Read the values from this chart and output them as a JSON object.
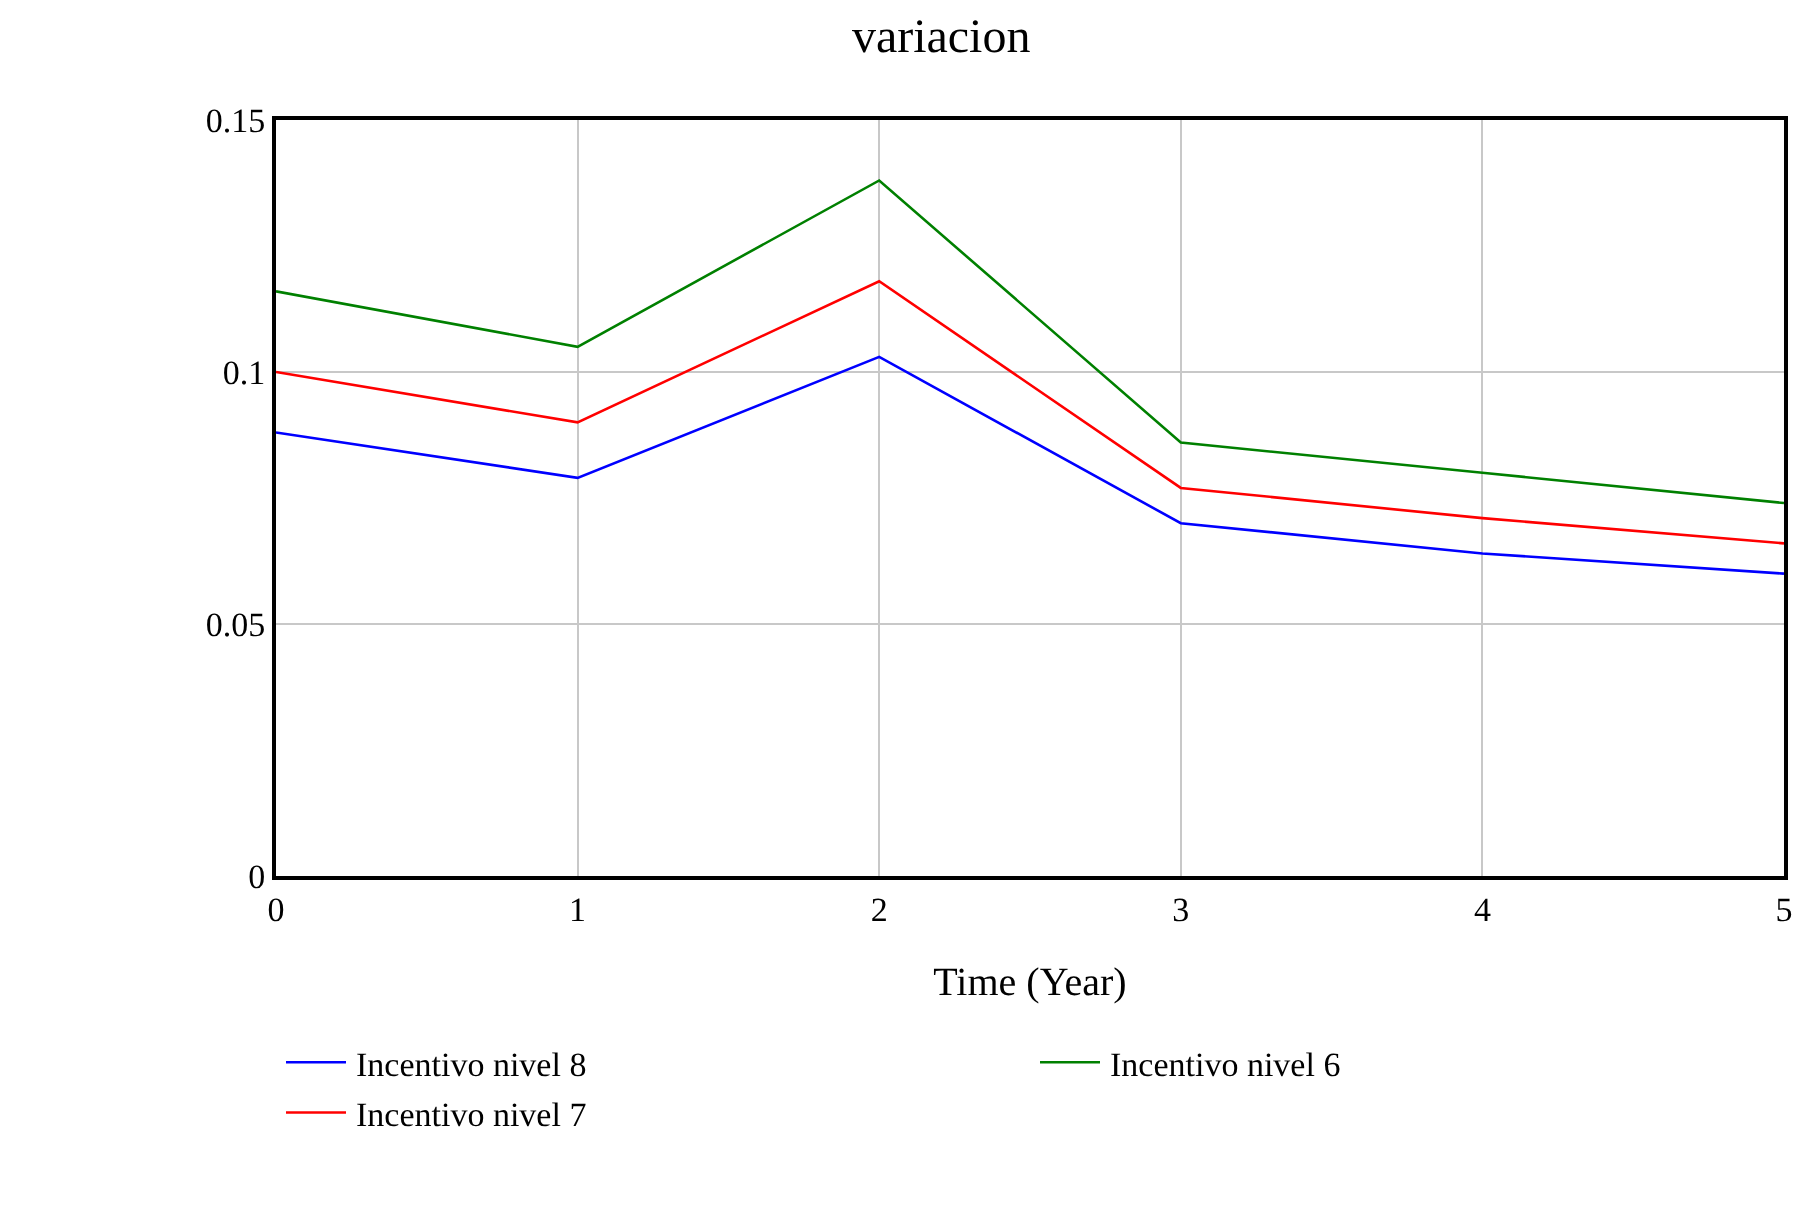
{
  "chart_data": {
    "type": "line",
    "title": "variacion",
    "xlabel": "Time (Year)",
    "x": [
      0,
      1,
      2,
      3,
      4,
      5
    ],
    "series": [
      {
        "name": "Incentivo nivel 8",
        "color": "#0000ff",
        "values": [
          0.088,
          0.079,
          0.103,
          0.07,
          0.064,
          0.06
        ]
      },
      {
        "name": "Incentivo nivel 6",
        "color": "#008000",
        "values": [
          0.116,
          0.105,
          0.138,
          0.086,
          0.08,
          0.074
        ]
      },
      {
        "name": "Incentivo nivel 7",
        "color": "#ff0000",
        "values": [
          0.1,
          0.09,
          0.118,
          0.077,
          0.071,
          0.066
        ]
      }
    ],
    "xlim": [
      0,
      5
    ],
    "xticks": [
      0,
      1,
      2,
      3,
      4,
      5
    ],
    "ylim": [
      0,
      0.15
    ],
    "yticks": [
      0,
      0.05,
      0.1,
      0.15
    ],
    "grid": true,
    "legend": "bottom",
    "marker": "none",
    "line_style": "solid"
  }
}
